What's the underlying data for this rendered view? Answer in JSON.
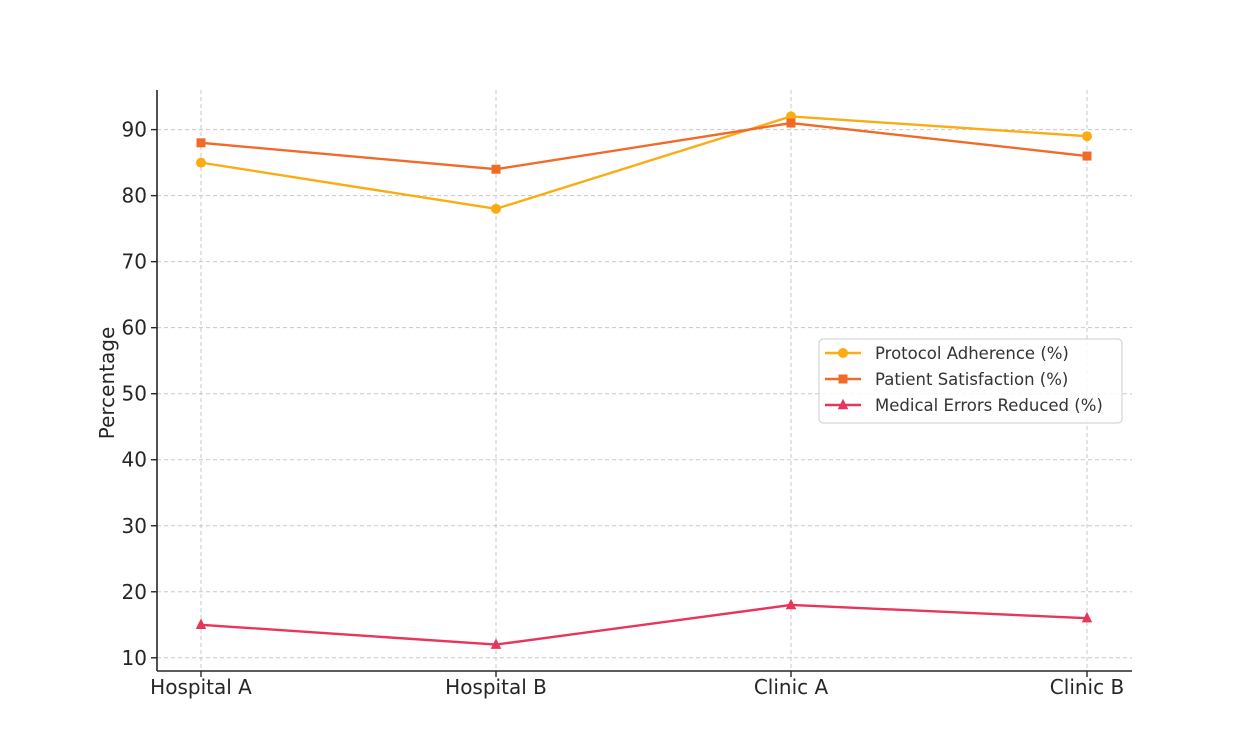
{
  "chart_data": {
    "type": "line",
    "title": "",
    "xlabel": "",
    "ylabel": "Percentage",
    "categories": [
      "Hospital A",
      "Hospital B",
      "Clinic A",
      "Clinic B"
    ],
    "ylim": [
      8,
      96
    ],
    "yticks": [
      10,
      20,
      30,
      40,
      50,
      60,
      70,
      80,
      90
    ],
    "grid": true,
    "legend_position": "center-right",
    "series": [
      {
        "name": "Protocol Adherence (%)",
        "values": [
          85,
          78,
          92,
          89
        ],
        "color": "#FAAC12",
        "marker": "circle"
      },
      {
        "name": "Patient Satisfaction (%)",
        "values": [
          88,
          84,
          91,
          86
        ],
        "color": "#F06A28",
        "marker": "square"
      },
      {
        "name": "Medical Errors Reduced (%)",
        "values": [
          15,
          12,
          18,
          16
        ],
        "color": "#E8355B",
        "marker": "triangle"
      }
    ]
  }
}
